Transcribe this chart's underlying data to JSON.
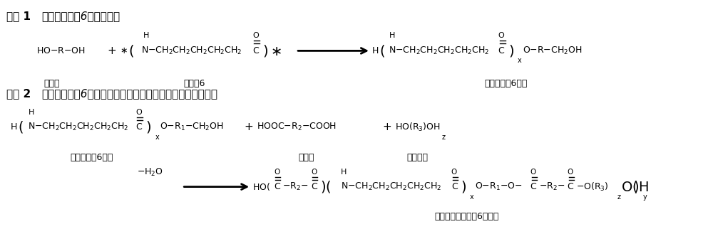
{
  "bg_color": "#ffffff",
  "figsize": [
    10.0,
    3.29
  ],
  "dpi": 100,
  "reaction1_title_bold": "反应 1",
  "reaction1_title_normal": "（废弃聚酯胺6醒解反应）",
  "reaction2_title_bold": "反应 2",
  "reaction2_title_normal": "（醒解聚酯胺6链段与二元酸、聚醚链段酵化、酯胺化反应）",
  "label_diol": "二元醇",
  "label_pa6": "聚酯胺6",
  "label_alc_pa6": "醒解聚酯胺6链段",
  "label_diacid": "二元酸",
  "label_polyether": "聚醚链段",
  "label_product": "再生低燔点聚酯胺6弹性体"
}
